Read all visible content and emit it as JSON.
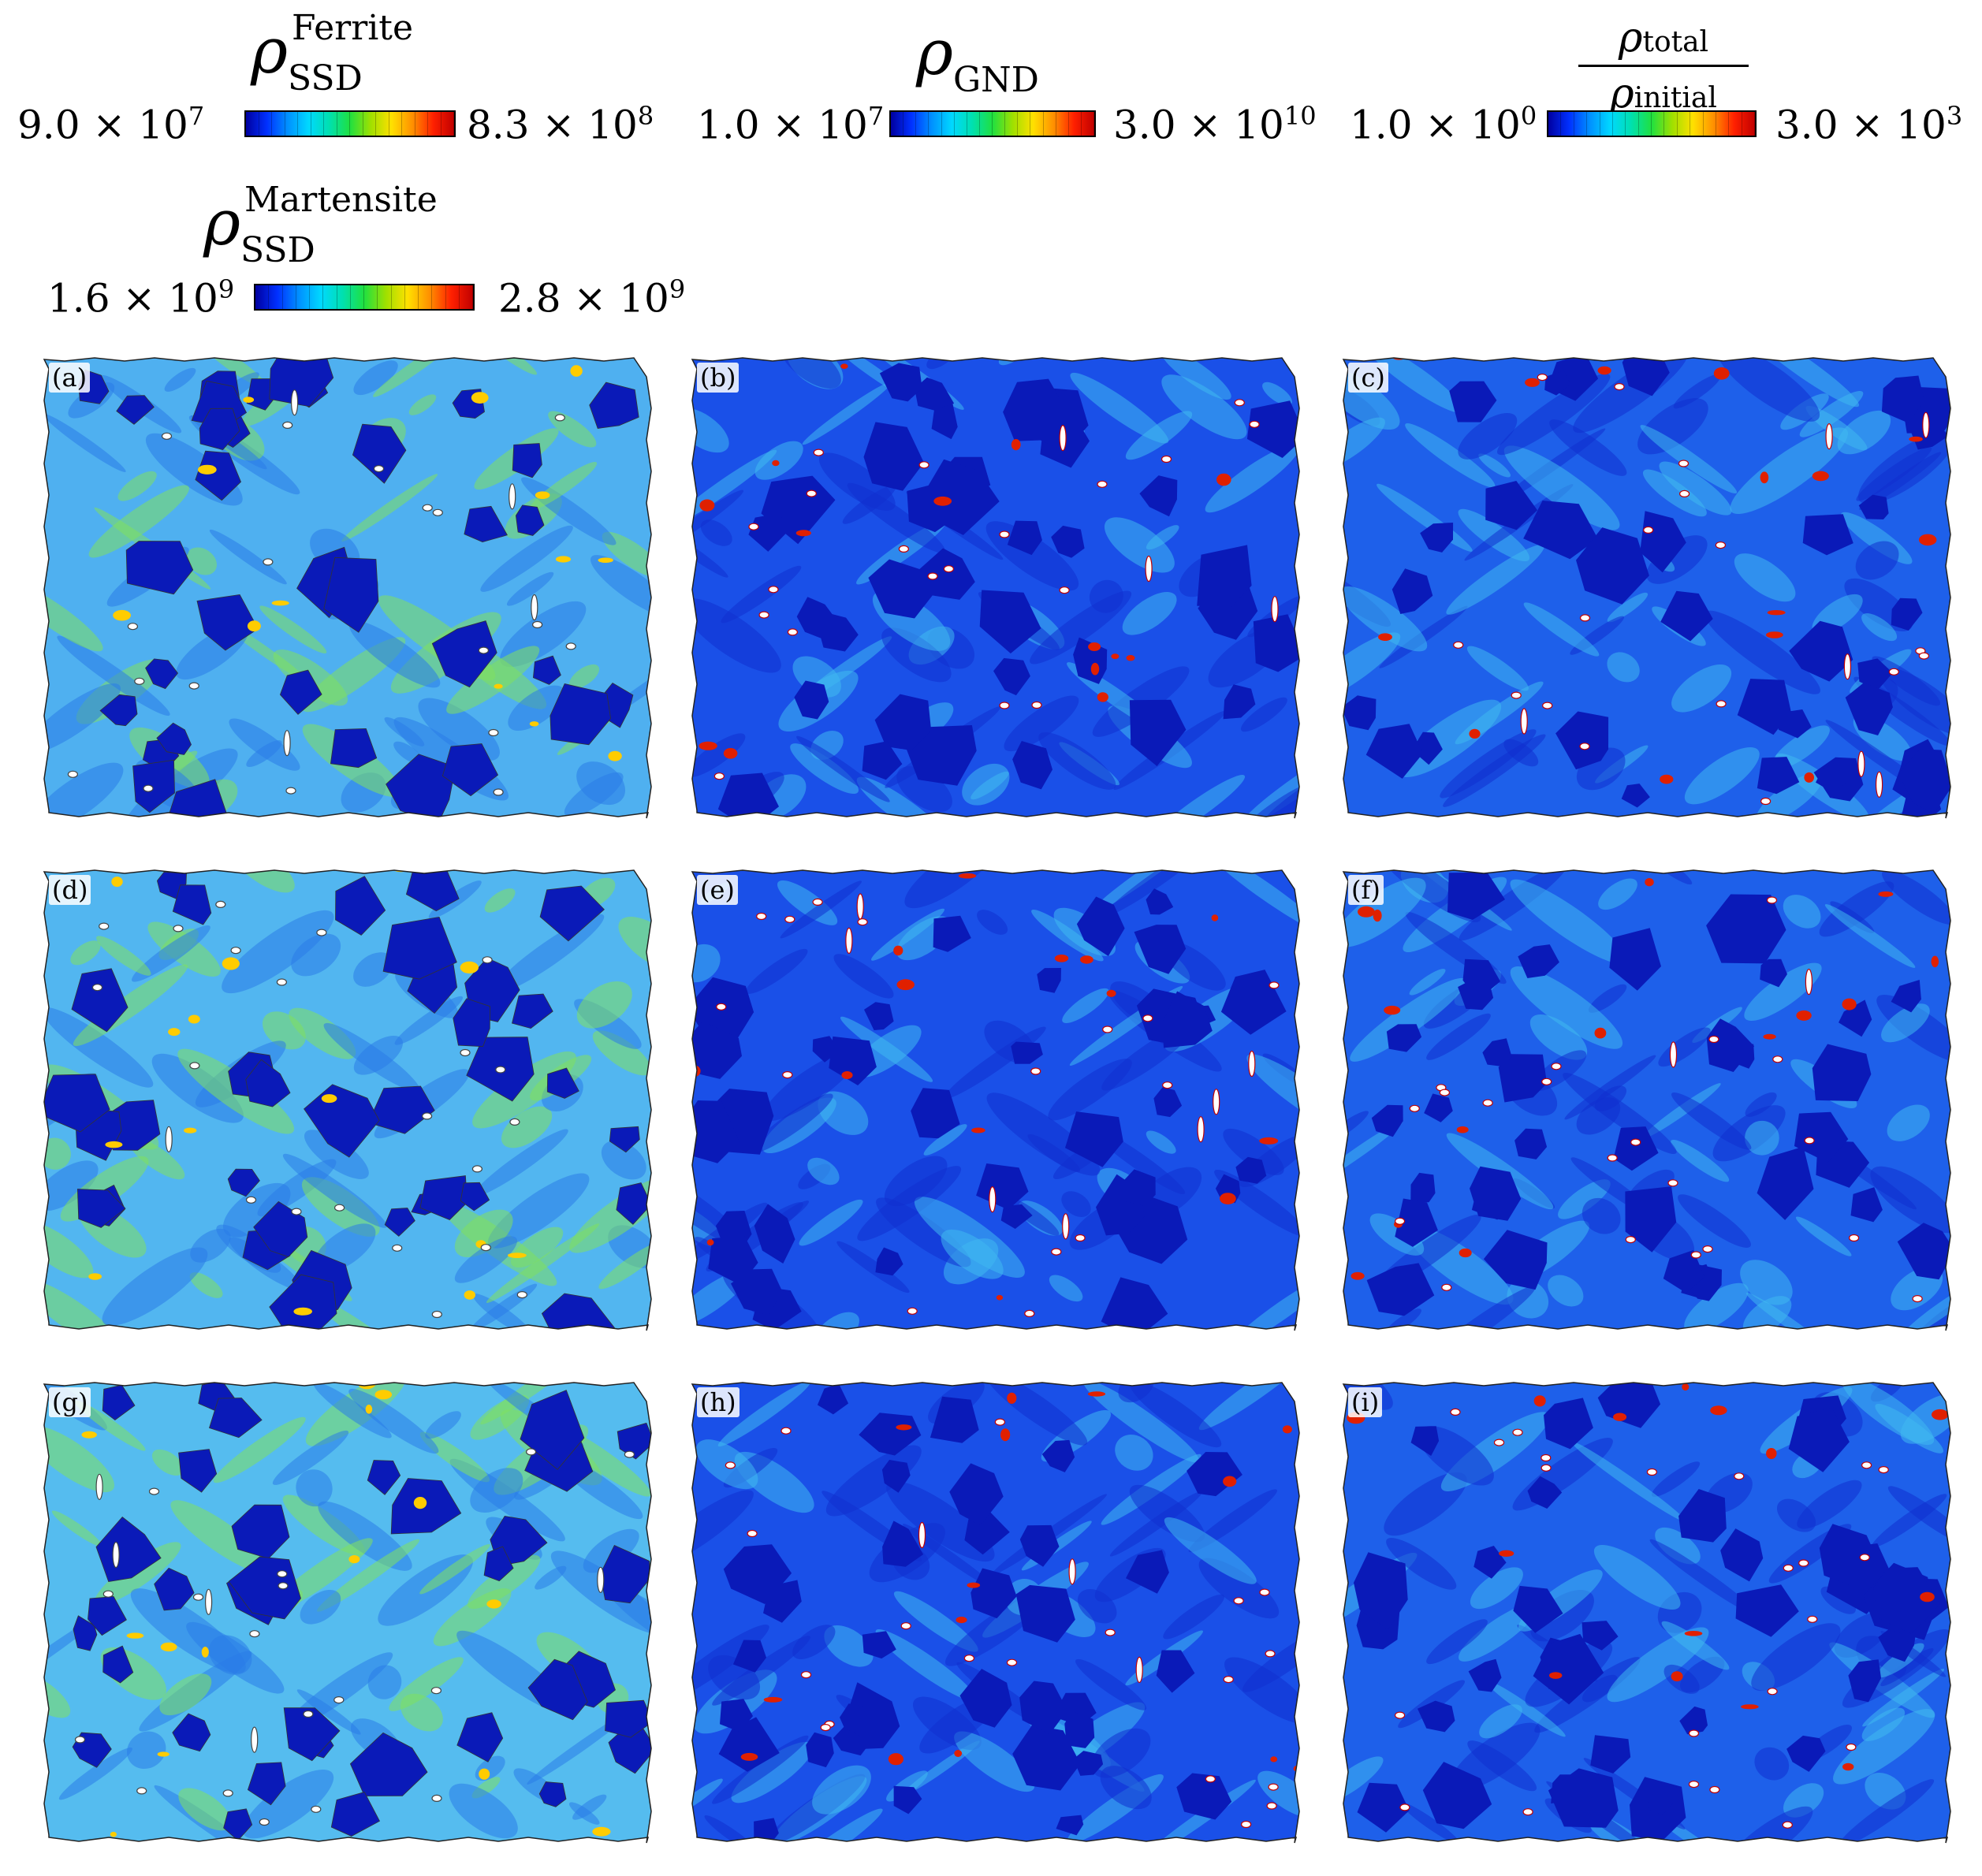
{
  "legends": [
    {
      "id": "ferrite",
      "rho": "ρ",
      "sub": "SSD",
      "sup": "Ferrite",
      "min_mantissa": "9.0 × 10",
      "min_exp": "7",
      "max_mantissa": "8.3 × 10",
      "max_exp": "8"
    },
    {
      "id": "gnd",
      "rho": "ρ",
      "sub": "GND",
      "sup": "",
      "min_mantissa": "1.0 × 10",
      "min_exp": "7",
      "max_mantissa": "3.0 × 10",
      "max_exp": "10"
    },
    {
      "id": "ratio",
      "num_rho": "ρ",
      "num_sub": "total",
      "den_rho": "ρ",
      "den_sub": "initial",
      "min_mantissa": "1.0 × 10",
      "min_exp": "0",
      "max_mantissa": "3.0 × 10",
      "max_exp": "3"
    },
    {
      "id": "martensite",
      "rho": "ρ",
      "sub": "SSD",
      "sup": "Martensite",
      "min_mantissa": "1.6 × 10",
      "min_exp": "9",
      "max_mantissa": "2.8 × 10",
      "max_exp": "9"
    }
  ],
  "colormap": {
    "low": "#0000a0",
    "mid": "#20e040",
    "high": "#c00000"
  },
  "panels": [
    {
      "label": "(a)",
      "field": "ferrite-martensite-ssd",
      "base": "#4fb0f0"
    },
    {
      "label": "(b)",
      "field": "gnd",
      "base": "#1a50e8"
    },
    {
      "label": "(c)",
      "field": "total-ratio",
      "base": "#1e60ea"
    },
    {
      "label": "(d)",
      "field": "ferrite-martensite-ssd",
      "base": "#52b6f0"
    },
    {
      "label": "(e)",
      "field": "gnd",
      "base": "#1a50e8"
    },
    {
      "label": "(f)",
      "field": "total-ratio",
      "base": "#1e60ea"
    },
    {
      "label": "(g)",
      "field": "ferrite-martensite-ssd",
      "base": "#55bcef"
    },
    {
      "label": "(h)",
      "field": "gnd",
      "base": "#1a50e8"
    },
    {
      "label": "(i)",
      "field": "total-ratio",
      "base": "#1e60ea"
    }
  ]
}
